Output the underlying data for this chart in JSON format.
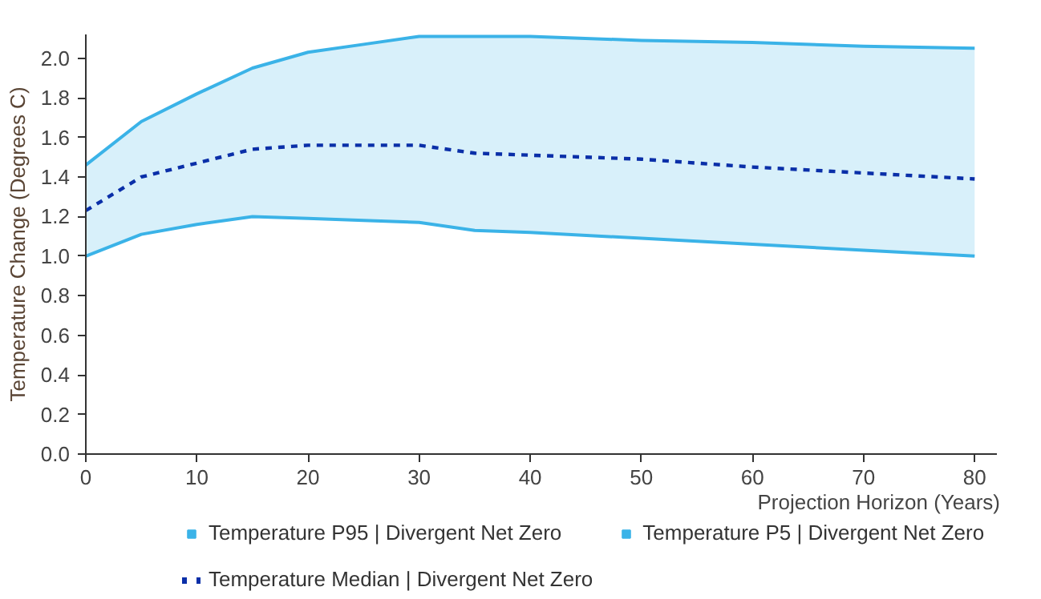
{
  "chart_data": {
    "type": "line",
    "xlabel": "Projection Horizon (Years)",
    "ylabel": "Temperature Change (Degrees C)",
    "x": [
      0,
      5,
      10,
      15,
      20,
      25,
      30,
      35,
      40,
      50,
      60,
      70,
      80
    ],
    "xlim": [
      0,
      82
    ],
    "xticks": [
      0,
      10,
      20,
      30,
      40,
      50,
      60,
      70,
      80
    ],
    "ylim": [
      0,
      2.12
    ],
    "yticks": [
      {
        "value": 0,
        "label": "0.0"
      },
      {
        "value": 0.2,
        "label": "0.2"
      },
      {
        "value": 0.4,
        "label": "0.4"
      },
      {
        "value": 0.6,
        "label": "0.6"
      },
      {
        "value": 0.8,
        "label": "0.8"
      },
      {
        "value": 1,
        "label": "1.0"
      },
      {
        "value": 1.2,
        "label": "1.2"
      },
      {
        "value": 1.4,
        "label": "1.4"
      },
      {
        "value": 1.6,
        "label": "1.6"
      },
      {
        "value": 1.8,
        "label": "1.8"
      },
      {
        "value": 2,
        "label": "2.0"
      }
    ],
    "grid": false,
    "legend": "bottom",
    "series": [
      {
        "name": "Temperature P95 | Divergent Net Zero",
        "color": "#3bb3e8",
        "line_style": "solid",
        "values": [
          1.46,
          1.68,
          1.82,
          1.95,
          2.03,
          2.07,
          2.11,
          2.11,
          2.11,
          2.09,
          2.08,
          2.06,
          2.05
        ]
      },
      {
        "name": "Temperature P5 | Divergent Net Zero",
        "color": "#3bb3e8",
        "line_style": "solid",
        "values": [
          1.0,
          1.11,
          1.16,
          1.2,
          1.19,
          1.18,
          1.17,
          1.13,
          1.12,
          1.09,
          1.06,
          1.03,
          1.0
        ]
      },
      {
        "name": "Temperature Median | Divergent Net Zero",
        "color": "#0a2fa8",
        "line_style": "dashed",
        "values": [
          1.23,
          1.4,
          1.47,
          1.54,
          1.56,
          1.56,
          1.56,
          1.52,
          1.51,
          1.49,
          1.45,
          1.42,
          1.39
        ],
        "lower": [
          1.0,
          1.11,
          1.16,
          1.2,
          1.19,
          1.18,
          1.17,
          1.13,
          1.12,
          1.09,
          1.06,
          1.03,
          1.0
        ],
        "upper": [
          1.46,
          1.68,
          1.82,
          1.95,
          2.03,
          2.07,
          2.11,
          2.11,
          2.11,
          2.09,
          2.08,
          2.06,
          2.05
        ]
      }
    ]
  }
}
